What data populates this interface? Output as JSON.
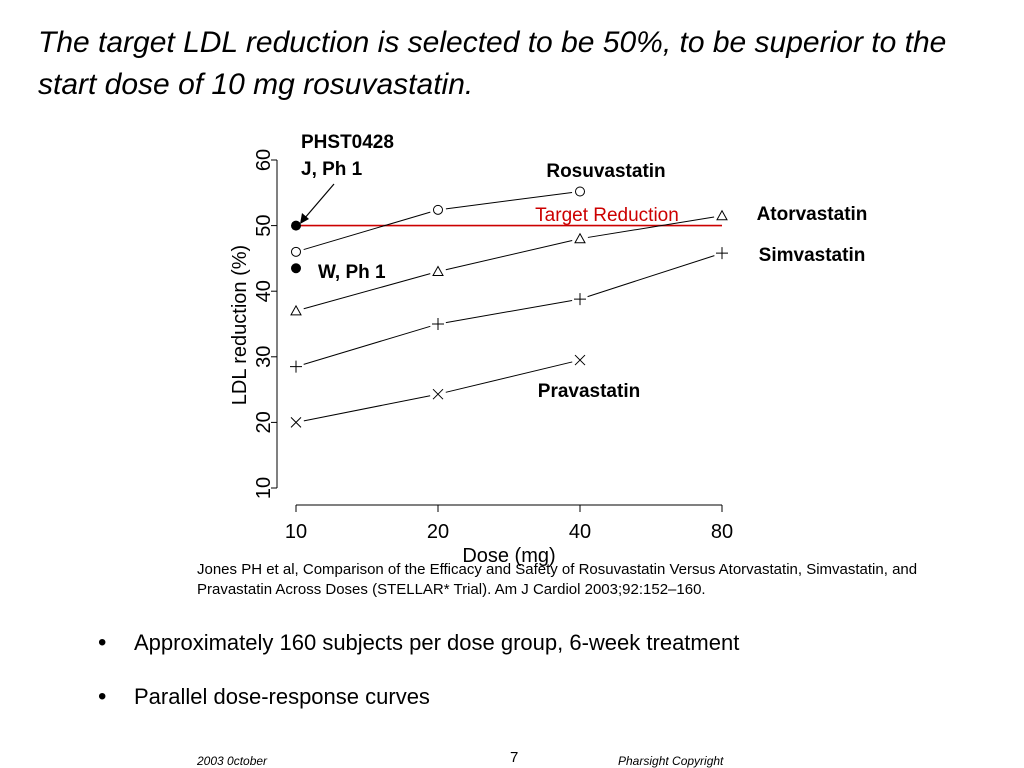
{
  "slide": {
    "title": "The target LDL reduction is selected to be 50%, to be superior to the start dose of 10 mg rosuvastatin.",
    "citation": "Jones PH et al, Comparison of the Efficacy and Safety of Rosuvastatin Versus Atorvastatin, Simvastatin, and Pravastatin Across Doses (STELLAR* Trial). Am J Cardiol 2003;92:152–160.",
    "bullets": [
      "Approximately 160 subjects per dose group, 6-week treatment",
      "Parallel dose-response curves"
    ],
    "footer": {
      "date": "2003 0ctober",
      "page": "7",
      "copyright": "Pharsight Copyright"
    }
  },
  "chart_data": {
    "type": "line",
    "xlabel": "Dose (mg)",
    "ylabel": "LDL reduction (%)",
    "x_scale": "log",
    "categories": [
      "10",
      "20",
      "40",
      "80"
    ],
    "x": [
      10,
      20,
      40,
      80
    ],
    "yticks": [
      "10",
      "20",
      "30",
      "40",
      "50",
      "60"
    ],
    "ylim": [
      10,
      60
    ],
    "grid": false,
    "series": [
      {
        "name": "Rosuvastatin",
        "marker": "circle",
        "x": [
          10,
          20,
          40
        ],
        "values": [
          46,
          52.4,
          55.2
        ]
      },
      {
        "name": "Atorvastatin",
        "marker": "triangle",
        "x": [
          10,
          20,
          40,
          80
        ],
        "values": [
          37,
          43,
          48,
          51.5
        ]
      },
      {
        "name": "Simvastatin",
        "marker": "plus",
        "x": [
          10,
          20,
          40,
          80
        ],
        "values": [
          28.5,
          35,
          38.8,
          45.8
        ]
      },
      {
        "name": "Pravastatin",
        "marker": "cross",
        "x": [
          10,
          20,
          40
        ],
        "values": [
          20,
          24.3,
          29.5
        ]
      }
    ],
    "target": {
      "label": "Target Reduction",
      "value": 50,
      "color": "#cc0000"
    },
    "points": [
      {
        "label": "PHST0428\nJ, Ph 1",
        "x": 10,
        "value": 50
      },
      {
        "label": "W, Ph 1",
        "x": 10,
        "value": 43.5
      }
    ]
  }
}
